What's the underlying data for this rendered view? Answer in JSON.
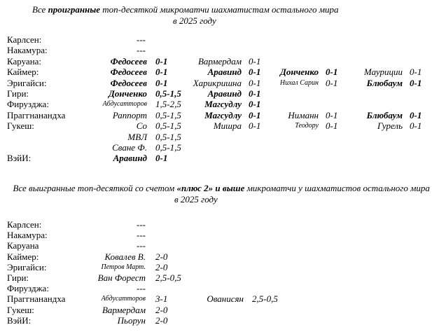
{
  "section1": {
    "title": [
      {
        "text": "Все "
      },
      {
        "text": "проигранные",
        "bold": true
      },
      {
        "text": " топ-десяткой микроматчи шахматистам остального мира"
      }
    ],
    "subtitle": "в 2025 году",
    "rows": [
      {
        "player": "Карлсен:",
        "none": "---"
      },
      {
        "player": "Накамура:",
        "none": "---"
      },
      {
        "player": "Каруана:",
        "results": [
          {
            "opponent": "Федосеев",
            "score": "0-1",
            "bold": true
          },
          {
            "opponent": "Вармердам",
            "score": "0-1"
          },
          null,
          null
        ]
      },
      {
        "player": "Каймер:",
        "results": [
          {
            "opponent": "Федосеев",
            "score": "0-1",
            "bold": true
          },
          {
            "opponent": "Аравинд",
            "score": "0-1",
            "bold": true
          },
          {
            "opponent": "Донченко",
            "score": "0-1",
            "bold": true
          },
          {
            "opponent": "Мауриции",
            "score": "0-1"
          }
        ]
      },
      {
        "player": "Эригайси:",
        "results": [
          {
            "opponent": "Федосеев",
            "score": "0-1",
            "bold": true
          },
          {
            "opponent": "Харикришна",
            "score": "0-1"
          },
          {
            "opponent": "Нихал Сарин",
            "score": "0-1",
            "small": true
          },
          {
            "opponent": "Блюбаум",
            "score": "0-1",
            "bold": true
          }
        ]
      },
      {
        "player": "Гири:",
        "results": [
          {
            "opponent": "Донченко",
            "score": "0,5-1,5",
            "bold": true
          },
          {
            "opponent": "Аравинд",
            "score": "0-1",
            "bold": true
          },
          null,
          null
        ]
      },
      {
        "player": "Фирузджа:",
        "results": [
          {
            "opponent": "Абдусатторов",
            "score": "1,5-2,5",
            "small": true
          },
          {
            "opponent": "Магсудлу",
            "score": "0-1",
            "bold": true
          },
          null,
          null
        ]
      },
      {
        "player": "Праггнанандха",
        "results": [
          {
            "opponent": "Раппорт",
            "score": "0,5-1,5"
          },
          {
            "opponent": "Магсудлу",
            "score": "0-1",
            "bold": true
          },
          {
            "opponent": "Ниманн",
            "score": "0-1"
          },
          {
            "opponent": "Блюбаум",
            "score": "0-1",
            "bold": true
          }
        ]
      },
      {
        "player": "Гукеш:",
        "results": [
          {
            "opponent": "Со",
            "score": "0,5-1,5"
          },
          {
            "opponent": "Мишра",
            "score": "0-1"
          },
          {
            "opponent": "Теодору",
            "score": "0-1",
            "small": true
          },
          {
            "opponent": "Гурель",
            "score": "0-1"
          }
        ]
      },
      {
        "results": [
          {
            "opponent": "МВЛ",
            "score": "0,5-1,5"
          },
          null,
          null,
          null
        ]
      },
      {
        "results": [
          {
            "opponent": "Сване Ф.",
            "score": "0,5-1,5"
          },
          null,
          null,
          null
        ]
      },
      {
        "player": "ВэйИ:",
        "results": [
          {
            "opponent": "Аравинд",
            "score": "0-1",
            "bold": true
          },
          null,
          null,
          null
        ]
      }
    ]
  },
  "section2": {
    "title": [
      {
        "text": "Все выигранные топ-десяткой со счетом "
      },
      {
        "text": "«плюс 2» и выше",
        "bold": true
      },
      {
        "text": " микроматчи у шахматистов остального мира"
      }
    ],
    "subtitle": "в 2025 году",
    "rows": [
      {
        "player": "Карлсен:",
        "none": "---"
      },
      {
        "player": "Накамура:",
        "none": "---"
      },
      {
        "player": "Каруана",
        "none": "---"
      },
      {
        "player": "Каймер:",
        "results": [
          {
            "opponent": "Ковалев В.",
            "score": "2-0"
          },
          null
        ]
      },
      {
        "player": "Эригайси:",
        "results": [
          {
            "opponent": "Петров Март.",
            "score": "2-0",
            "small": true
          },
          null
        ]
      },
      {
        "player": "Гири:",
        "results": [
          {
            "opponent": "Ван Форест",
            "score": "2,5-0,5"
          },
          null
        ]
      },
      {
        "player": "Фирузджа:",
        "none": "---"
      },
      {
        "player": "Праггнанандха",
        "results": [
          {
            "opponent": "Абдусатторов",
            "score": "3-1",
            "small": true
          },
          {
            "opponent": "Ованисян",
            "score": "2,5-0,5"
          }
        ]
      },
      {
        "player": "Гукеш:",
        "results": [
          {
            "opponent": "Вармердам",
            "score": "2-0"
          },
          null
        ]
      },
      {
        "player": "ВэйИ:",
        "results": [
          {
            "opponent": "Пьорун",
            "score": "2-0"
          },
          null
        ]
      }
    ]
  }
}
